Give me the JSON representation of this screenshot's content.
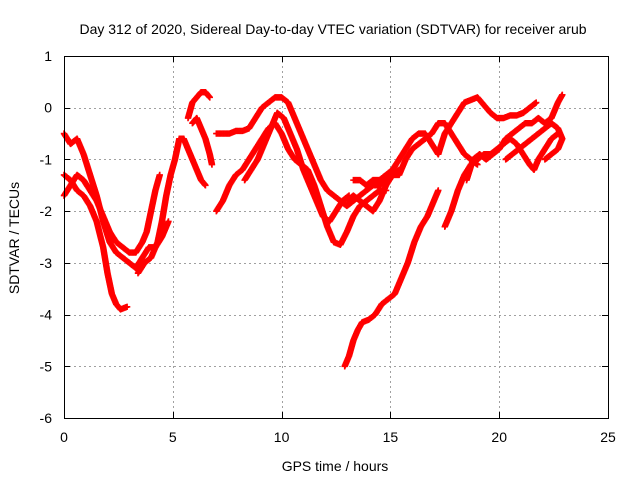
{
  "chart_data": {
    "type": "scatter",
    "title": "Day 312 of 2020, Sidereal Day-to-day VTEC variation (SDTVAR) for receiver arub",
    "xlabel": "GPS time / hours",
    "ylabel": "SDTVAR / TECUs",
    "xlim": [
      0,
      25
    ],
    "ylim": [
      -6,
      1
    ],
    "xticks": [
      "0",
      "5",
      "10",
      "15",
      "20",
      "25"
    ],
    "yticks": [
      "1",
      "0",
      "-1",
      "-2",
      "-3",
      "-4",
      "-5",
      "-6"
    ],
    "grid": true,
    "marker": "+",
    "color": "#ff0000",
    "series": [
      {
        "name": "track-a",
        "points": [
          [
            0.0,
            -0.5
          ],
          [
            0.3,
            -0.7
          ],
          [
            0.6,
            -0.6
          ],
          [
            0.9,
            -0.9
          ],
          [
            1.2,
            -1.3
          ],
          [
            1.5,
            -1.7
          ],
          [
            1.8,
            -2.2
          ],
          [
            2.1,
            -2.6
          ],
          [
            2.4,
            -2.8
          ],
          [
            2.7,
            -2.9
          ],
          [
            3.0,
            -3.0
          ],
          [
            3.3,
            -3.1
          ],
          [
            3.6,
            -2.9
          ],
          [
            3.9,
            -2.7
          ],
          [
            4.2,
            -2.7
          ],
          [
            4.5,
            -2.5
          ],
          [
            4.8,
            -2.2
          ]
        ]
      },
      {
        "name": "track-b",
        "points": [
          [
            0.0,
            -1.3
          ],
          [
            0.3,
            -1.4
          ],
          [
            0.6,
            -1.6
          ],
          [
            0.9,
            -1.7
          ],
          [
            1.2,
            -1.9
          ],
          [
            1.5,
            -2.2
          ],
          [
            1.8,
            -2.7
          ],
          [
            2.0,
            -3.2
          ],
          [
            2.2,
            -3.6
          ],
          [
            2.4,
            -3.8
          ],
          [
            2.6,
            -3.9
          ],
          [
            2.9,
            -3.85
          ]
        ]
      },
      {
        "name": "track-c",
        "points": [
          [
            0.0,
            -1.7
          ],
          [
            0.3,
            -1.5
          ],
          [
            0.6,
            -1.3
          ],
          [
            0.9,
            -1.4
          ],
          [
            1.2,
            -1.6
          ],
          [
            1.5,
            -1.8
          ],
          [
            1.8,
            -2.1
          ],
          [
            2.1,
            -2.4
          ],
          [
            2.4,
            -2.6
          ],
          [
            2.7,
            -2.7
          ],
          [
            3.0,
            -2.8
          ],
          [
            3.3,
            -2.8
          ],
          [
            3.6,
            -2.6
          ],
          [
            3.8,
            -2.4
          ],
          [
            4.0,
            -2.0
          ],
          [
            4.2,
            -1.6
          ],
          [
            4.4,
            -1.3
          ]
        ]
      },
      {
        "name": "track-d",
        "points": [
          [
            3.4,
            -3.2
          ],
          [
            3.7,
            -3.0
          ],
          [
            4.0,
            -2.9
          ],
          [
            4.3,
            -2.6
          ],
          [
            4.5,
            -2.2
          ],
          [
            4.7,
            -1.7
          ],
          [
            4.9,
            -1.3
          ],
          [
            5.1,
            -1.0
          ],
          [
            5.3,
            -0.6
          ],
          [
            5.5,
            -0.6
          ],
          [
            5.7,
            -0.8
          ],
          [
            5.9,
            -1.0
          ],
          [
            6.1,
            -1.2
          ],
          [
            6.3,
            -1.4
          ],
          [
            6.5,
            -1.5
          ]
        ]
      },
      {
        "name": "track-e",
        "points": [
          [
            5.7,
            -0.2
          ],
          [
            5.9,
            0.1
          ],
          [
            6.1,
            0.2
          ],
          [
            6.3,
            0.3
          ],
          [
            6.5,
            0.3
          ],
          [
            6.7,
            0.2
          ]
        ]
      },
      {
        "name": "track-f",
        "points": [
          [
            5.9,
            -0.3
          ],
          [
            6.1,
            -0.2
          ],
          [
            6.3,
            -0.4
          ],
          [
            6.5,
            -0.6
          ],
          [
            6.7,
            -0.9
          ],
          [
            6.8,
            -1.1
          ]
        ]
      },
      {
        "name": "track-g",
        "points": [
          [
            7.0,
            -0.5
          ],
          [
            7.3,
            -0.5
          ],
          [
            7.6,
            -0.5
          ],
          [
            7.9,
            -0.45
          ],
          [
            8.2,
            -0.45
          ],
          [
            8.5,
            -0.4
          ],
          [
            8.8,
            -0.2
          ],
          [
            9.1,
            0.0
          ],
          [
            9.4,
            0.1
          ],
          [
            9.7,
            0.2
          ],
          [
            10.0,
            0.2
          ],
          [
            10.3,
            0.1
          ],
          [
            10.6,
            -0.2
          ],
          [
            10.9,
            -0.5
          ],
          [
            11.2,
            -0.8
          ],
          [
            11.5,
            -1.1
          ],
          [
            11.8,
            -1.4
          ],
          [
            12.1,
            -1.6
          ],
          [
            12.4,
            -1.7
          ],
          [
            12.7,
            -1.8
          ],
          [
            13.0,
            -1.9
          ],
          [
            13.3,
            -1.8
          ],
          [
            13.6,
            -1.7
          ],
          [
            13.9,
            -1.6
          ],
          [
            14.2,
            -1.5
          ],
          [
            14.5,
            -1.5
          ],
          [
            14.8,
            -1.4
          ],
          [
            15.1,
            -1.3
          ],
          [
            15.4,
            -1.2
          ]
        ]
      },
      {
        "name": "track-h",
        "points": [
          [
            7.0,
            -2.0
          ],
          [
            7.3,
            -1.8
          ],
          [
            7.6,
            -1.5
          ],
          [
            7.9,
            -1.3
          ],
          [
            8.2,
            -1.2
          ],
          [
            8.5,
            -1.0
          ],
          [
            8.8,
            -0.8
          ],
          [
            9.1,
            -0.6
          ],
          [
            9.4,
            -0.4
          ],
          [
            9.7,
            -0.3
          ],
          [
            10.0,
            -0.5
          ],
          [
            10.3,
            -0.8
          ],
          [
            10.6,
            -1.0
          ],
          [
            10.9,
            -1.1
          ],
          [
            11.2,
            -1.2
          ],
          [
            11.5,
            -1.5
          ],
          [
            11.8,
            -1.9
          ],
          [
            12.1,
            -2.3
          ],
          [
            12.4,
            -2.6
          ],
          [
            12.7,
            -2.65
          ],
          [
            13.0,
            -2.4
          ],
          [
            13.3,
            -2.1
          ],
          [
            13.6,
            -1.9
          ],
          [
            13.9,
            -1.8
          ],
          [
            14.2,
            -1.7
          ],
          [
            14.5,
            -1.6
          ],
          [
            14.8,
            -1.6
          ]
        ]
      },
      {
        "name": "track-i",
        "points": [
          [
            8.3,
            -1.4
          ],
          [
            8.6,
            -1.2
          ],
          [
            8.9,
            -1.0
          ],
          [
            9.2,
            -0.7
          ],
          [
            9.5,
            -0.4
          ],
          [
            9.8,
            -0.1
          ],
          [
            10.1,
            -0.2
          ],
          [
            10.4,
            -0.5
          ],
          [
            10.7,
            -0.8
          ],
          [
            11.0,
            -1.2
          ],
          [
            11.3,
            -1.5
          ],
          [
            11.6,
            -1.8
          ],
          [
            11.9,
            -2.1
          ],
          [
            12.2,
            -2.2
          ],
          [
            12.5,
            -2.0
          ],
          [
            12.8,
            -1.8
          ],
          [
            13.1,
            -1.7
          ]
        ]
      },
      {
        "name": "track-j",
        "points": [
          [
            13.0,
            -1.8
          ],
          [
            13.3,
            -1.7
          ],
          [
            13.6,
            -1.8
          ],
          [
            13.9,
            -1.9
          ],
          [
            14.2,
            -2.0
          ],
          [
            14.5,
            -1.8
          ],
          [
            14.8,
            -1.5
          ],
          [
            15.1,
            -1.3
          ],
          [
            15.4,
            -1.3
          ],
          [
            15.7,
            -1.0
          ],
          [
            16.0,
            -0.8
          ],
          [
            16.3,
            -0.7
          ],
          [
            16.6,
            -0.6
          ],
          [
            16.9,
            -0.5
          ],
          [
            17.2,
            -0.3
          ],
          [
            17.5,
            -0.3
          ],
          [
            17.8,
            -0.5
          ],
          [
            18.1,
            -0.7
          ],
          [
            18.4,
            -0.9
          ],
          [
            18.7,
            -1.0
          ],
          [
            19.0,
            -1.1
          ]
        ]
      },
      {
        "name": "track-k",
        "points": [
          [
            13.3,
            -1.4
          ],
          [
            13.6,
            -1.4
          ],
          [
            13.9,
            -1.5
          ],
          [
            14.2,
            -1.4
          ],
          [
            14.5,
            -1.4
          ],
          [
            14.8,
            -1.3
          ],
          [
            15.1,
            -1.2
          ],
          [
            15.4,
            -1.0
          ],
          [
            15.7,
            -0.8
          ],
          [
            16.0,
            -0.6
          ],
          [
            16.3,
            -0.5
          ],
          [
            16.6,
            -0.5
          ],
          [
            16.9,
            -0.7
          ],
          [
            17.2,
            -0.9
          ],
          [
            17.5,
            -0.5
          ],
          [
            17.8,
            -0.3
          ],
          [
            18.1,
            -0.1
          ],
          [
            18.4,
            0.1
          ],
          [
            18.7,
            0.15
          ],
          [
            19.0,
            0.2
          ],
          [
            19.3,
            0.05
          ],
          [
            19.6,
            -0.1
          ],
          [
            19.9,
            -0.2
          ],
          [
            20.2,
            -0.2
          ],
          [
            20.5,
            -0.15
          ],
          [
            20.8,
            -0.15
          ],
          [
            21.1,
            -0.1
          ],
          [
            21.4,
            0.0
          ],
          [
            21.7,
            0.1
          ]
        ]
      },
      {
        "name": "track-l",
        "points": [
          [
            12.9,
            -5.0
          ],
          [
            13.1,
            -4.8
          ],
          [
            13.3,
            -4.5
          ],
          [
            13.5,
            -4.3
          ],
          [
            13.7,
            -4.15
          ],
          [
            14.0,
            -4.1
          ],
          [
            14.3,
            -4.0
          ],
          [
            14.6,
            -3.8
          ],
          [
            14.9,
            -3.7
          ],
          [
            15.2,
            -3.6
          ],
          [
            15.5,
            -3.3
          ],
          [
            15.8,
            -3.0
          ],
          [
            16.1,
            -2.6
          ],
          [
            16.4,
            -2.3
          ],
          [
            16.7,
            -2.1
          ],
          [
            17.0,
            -1.8
          ],
          [
            17.2,
            -1.6
          ]
        ]
      },
      {
        "name": "track-m",
        "points": [
          [
            17.5,
            -2.3
          ],
          [
            17.8,
            -2.0
          ],
          [
            18.1,
            -1.6
          ],
          [
            18.4,
            -1.3
          ],
          [
            18.7,
            -1.1
          ],
          [
            19.0,
            -1.0
          ],
          [
            19.3,
            -0.9
          ],
          [
            19.6,
            -0.9
          ],
          [
            19.9,
            -0.8
          ],
          [
            20.2,
            -0.7
          ],
          [
            20.5,
            -0.6
          ],
          [
            20.8,
            -0.7
          ],
          [
            21.1,
            -0.9
          ],
          [
            21.4,
            -1.1
          ],
          [
            21.6,
            -1.2
          ],
          [
            21.8,
            -1.0
          ],
          [
            22.1,
            -0.8
          ],
          [
            22.4,
            -0.6
          ],
          [
            22.7,
            -0.5
          ]
        ]
      },
      {
        "name": "track-n",
        "points": [
          [
            18.5,
            -1.4
          ],
          [
            18.8,
            -1.0
          ],
          [
            19.1,
            -0.9
          ],
          [
            19.4,
            -1.0
          ],
          [
            19.7,
            -0.9
          ],
          [
            20.0,
            -0.8
          ],
          [
            20.3,
            -0.6
          ],
          [
            20.6,
            -0.5
          ],
          [
            20.9,
            -0.4
          ],
          [
            21.2,
            -0.3
          ],
          [
            21.5,
            -0.3
          ],
          [
            21.8,
            -0.2
          ],
          [
            22.1,
            -0.3
          ],
          [
            22.4,
            -0.2
          ],
          [
            22.7,
            0.1
          ],
          [
            22.9,
            0.25
          ]
        ]
      },
      {
        "name": "track-o",
        "points": [
          [
            20.3,
            -1.0
          ],
          [
            20.6,
            -0.9
          ],
          [
            20.9,
            -0.8
          ],
          [
            21.2,
            -0.7
          ],
          [
            21.5,
            -0.6
          ],
          [
            21.8,
            -0.5
          ],
          [
            22.1,
            -0.4
          ],
          [
            22.4,
            -0.3
          ],
          [
            22.7,
            -0.4
          ],
          [
            22.9,
            -0.6
          ],
          [
            22.7,
            -0.8
          ],
          [
            22.4,
            -0.9
          ],
          [
            22.1,
            -1.0
          ]
        ]
      }
    ]
  }
}
